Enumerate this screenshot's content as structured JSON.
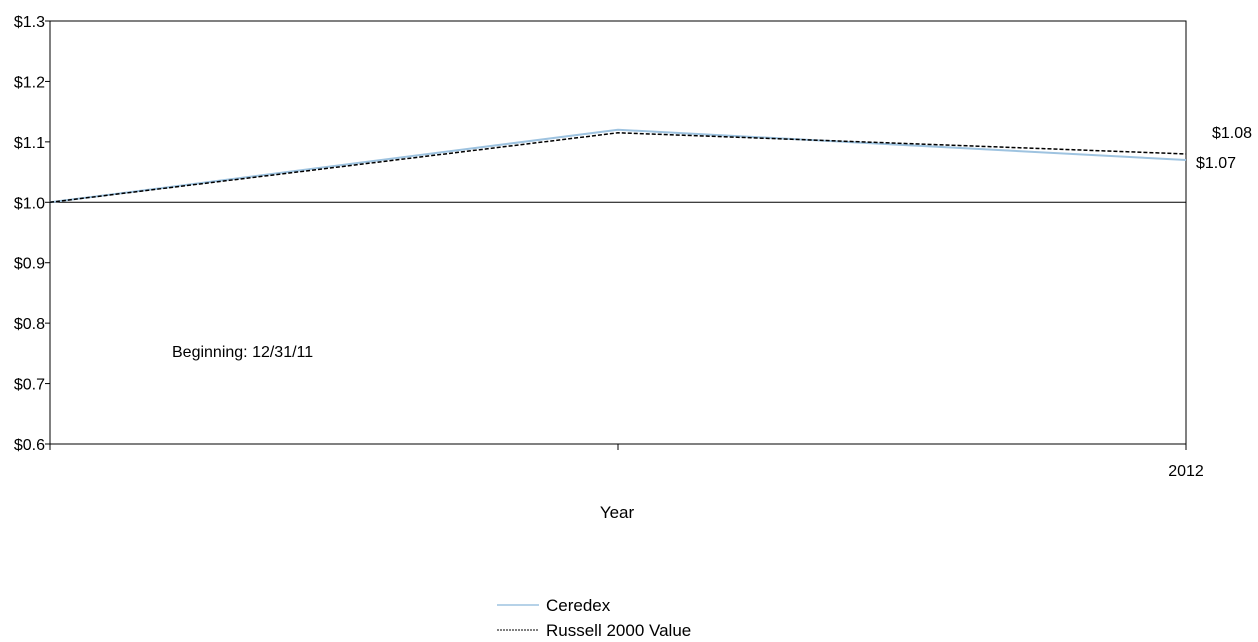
{
  "chart_data": {
    "type": "line",
    "title": "",
    "xlabel": "Year",
    "ylabel": "",
    "ylim": [
      0.6,
      1.3
    ],
    "yticks": [
      "$0.6",
      "$0.7",
      "$0.8",
      "$0.9",
      "$1.0",
      "$1.1",
      "$1.2",
      "$1.3"
    ],
    "ytick_values": [
      0.6,
      0.7,
      0.8,
      0.9,
      1.0,
      1.1,
      1.2,
      1.3
    ],
    "x": [
      0,
      1,
      2
    ],
    "x_tick_labels": [
      "",
      "",
      "2012"
    ],
    "reference_line": 1.0,
    "annotation": "Beginning: 12/31/11",
    "series": [
      {
        "name": "Ceredex",
        "values": [
          1.0,
          1.12,
          1.07
        ],
        "end_label": "$1.07",
        "color": "#9ec3e0",
        "style": "solid"
      },
      {
        "name": "Russell 2000 Value",
        "values": [
          1.0,
          1.115,
          1.08
        ],
        "end_label": "$1.08",
        "color": "#000000",
        "style": "dashed"
      }
    ],
    "legend_position": "bottom-center",
    "grid": false
  }
}
